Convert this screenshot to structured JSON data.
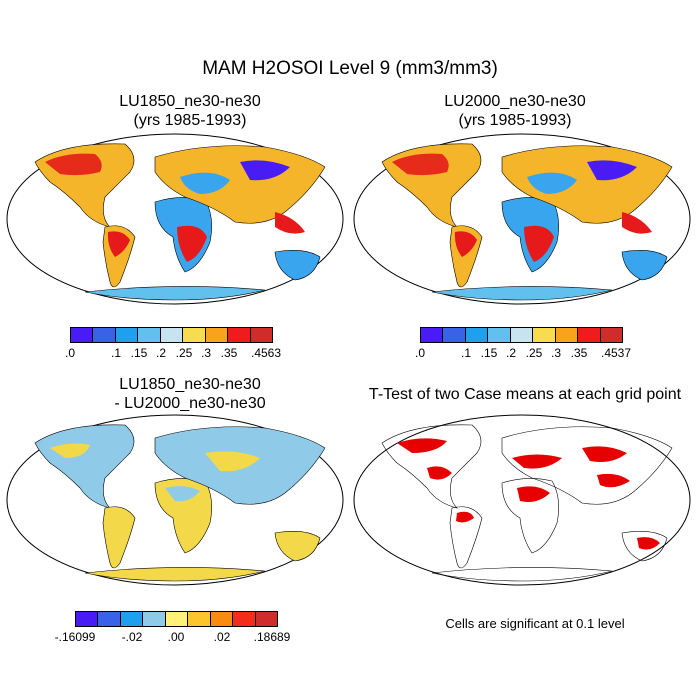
{
  "title": "MAM H2OSOI Level 9 (mm3/mm3)",
  "panels": {
    "top_left": {
      "line1": "LU1850_ne30-ne30",
      "line2": "(yrs 1985-1993)"
    },
    "top_right": {
      "line1": "LU2000_ne30-ne30",
      "line2": "(yrs 1985-1993)"
    },
    "bottom_left": {
      "line1": "LU1850_ne30-ne30",
      "line2": "- LU2000_ne30-ne30"
    },
    "bottom_right": {
      "line1": "T-Test of two Case means at each grid point"
    }
  },
  "colorbars": {
    "top_left": {
      "colors": [
        "#4a1cf5",
        "#3a62e8",
        "#1fa0ee",
        "#62c0ee",
        "#c7e3ef",
        "#f7dc4d",
        "#f9a21b",
        "#ee1c1c",
        "#d02c2c"
      ],
      "labels": [
        ".0",
        ".1",
        ".15",
        ".2",
        ".25",
        ".3",
        ".35",
        ".4563"
      ]
    },
    "top_right": {
      "colors": [
        "#4a1cf5",
        "#3a62e8",
        "#1fa0ee",
        "#62c0ee",
        "#c7e3ef",
        "#f7dc4d",
        "#f9a21b",
        "#ee1c1c",
        "#d02c2c"
      ],
      "labels": [
        ".0",
        ".1",
        ".15",
        ".2",
        ".25",
        ".3",
        ".35",
        ".4537"
      ]
    },
    "bottom_left": {
      "colors": [
        "#4a1cf5",
        "#3a62e8",
        "#1fa0ee",
        "#8fcbe9",
        "#fff07a",
        "#fbc52b",
        "#f98c0e",
        "#f42c1a",
        "#d02c2c"
      ],
      "labels": [
        "-.16099",
        "-.02",
        ".00",
        ".02",
        ".18689"
      ]
    }
  },
  "note": "Cells are significant at 0.1 level",
  "map_colors": {
    "ocean": "#ffffff",
    "land_default": "#f6c431",
    "wet": "#e11a1a",
    "dry": "#2a9ff0",
    "diff_land": "#f3d84a",
    "signif": "#e60000"
  }
}
